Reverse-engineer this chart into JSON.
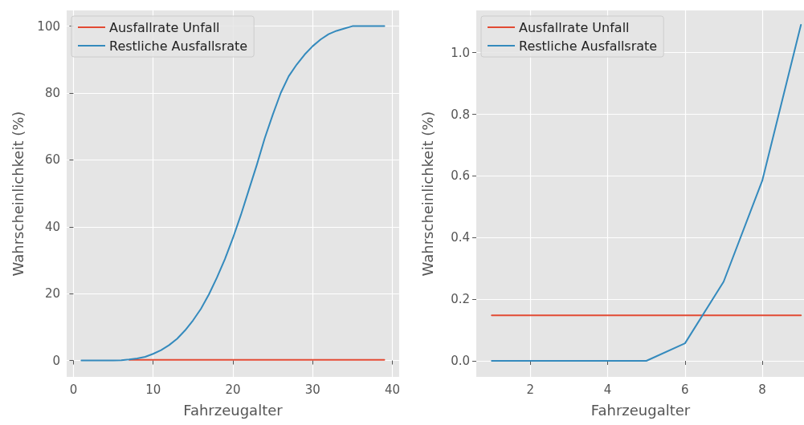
{
  "chart_data": [
    {
      "type": "line",
      "xlabel": "Fahrzeugalter",
      "ylabel": "Wahrscheinlichkeit (%)",
      "x": [
        1,
        2,
        3,
        4,
        5,
        6,
        7,
        8,
        9,
        10,
        11,
        12,
        13,
        14,
        15,
        16,
        17,
        18,
        19,
        20,
        21,
        22,
        23,
        24,
        25,
        26,
        27,
        28,
        29,
        30,
        31,
        32,
        33,
        34,
        35,
        36,
        37,
        38,
        39
      ],
      "series": [
        {
          "name": "Ausfallrate Unfall",
          "color": "#e24a33",
          "values": [
            null,
            null,
            null,
            null,
            null,
            null,
            0.2,
            0.2,
            0.2,
            0.2,
            0.2,
            0.2,
            0.2,
            0.2,
            0.2,
            0.2,
            0.2,
            0.2,
            0.2,
            0.2,
            0.2,
            0.2,
            0.2,
            0.2,
            0.2,
            0.2,
            0.2,
            0.2,
            0.2,
            0.2,
            0.2,
            0.2,
            0.2,
            0.2,
            0.2,
            0.2,
            0.2,
            0.2,
            0.2
          ]
        },
        {
          "name": "Restliche Ausfallsrate",
          "color": "#348abd",
          "values": [
            0,
            0,
            0,
            0,
            0,
            0.1,
            0.3,
            0.6,
            1.1,
            2.0,
            3.1,
            4.6,
            6.5,
            9,
            12,
            15.5,
            19.8,
            24.8,
            30.3,
            36.6,
            43.5,
            51,
            58.5,
            66.5,
            73.5,
            80,
            85,
            88.5,
            91.5,
            94,
            96,
            97.6,
            98.6,
            99.3,
            100,
            100,
            100,
            100,
            100
          ]
        }
      ],
      "xlim": [
        -0.85,
        40.85
      ],
      "xticks": [
        0,
        10,
        20,
        30,
        40
      ],
      "ylim": [
        -4.9,
        104.7
      ],
      "yticks": [
        0,
        20,
        40,
        60,
        80,
        100
      ],
      "grid": true,
      "legend": "top left"
    },
    {
      "type": "line",
      "xlabel": "Fahrzeugalter",
      "ylabel": "Wahrscheinlichkeit (%)",
      "x": [
        1,
        2,
        3,
        4,
        5,
        6,
        7,
        8,
        9
      ],
      "series": [
        {
          "name": "Ausfallrate Unfall",
          "color": "#e24a33",
          "values": [
            0.148,
            0.148,
            0.148,
            0.148,
            0.148,
            0.148,
            0.148,
            0.148,
            0.148
          ]
        },
        {
          "name": "Restliche Ausfallsrate",
          "color": "#348abd",
          "values": [
            0,
            0,
            0,
            0,
            0,
            0.057,
            0.257,
            0.585,
            1.09
          ]
        }
      ],
      "xlim": [
        0.6,
        9.1
      ],
      "xticks": [
        2,
        4,
        6,
        8
      ],
      "ylim": [
        -0.052,
        1.137
      ],
      "yticks": [
        {
          "value": 0,
          "label": "0.0"
        },
        0.2,
        0.4,
        0.6,
        0.8,
        {
          "value": 1,
          "label": "1.0"
        }
      ],
      "grid": true,
      "legend": "top left"
    }
  ]
}
